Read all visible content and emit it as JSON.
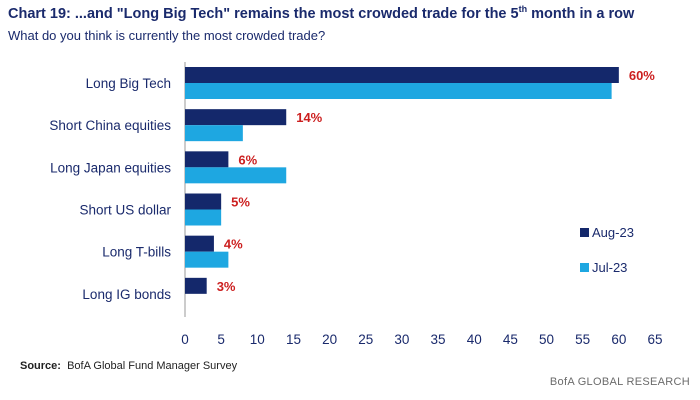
{
  "header": {
    "title": "Chart 19: ...and \"Long Big Tech\" remains the most crowded trade for the 5th month in a row",
    "title_prefix": "Chart 19: ...and \"Long Big Tech\" remains the most crowded trade for the 5",
    "title_sup": "th",
    "title_suffix": " month in a row",
    "subtitle": "What do you think is currently the most crowded trade?"
  },
  "chart_data": {
    "type": "bar",
    "orientation": "horizontal",
    "categories": [
      "Long Big Tech",
      "Short China equities",
      "Long Japan equities",
      "Short US dollar",
      "Long T-bills",
      "Long IG bonds"
    ],
    "series": [
      {
        "name": "Aug-23",
        "color": "#14286b",
        "values": [
          60,
          14,
          6,
          5,
          4,
          3
        ]
      },
      {
        "name": "Jul-23",
        "color": "#1ea7e1",
        "values": [
          59,
          8,
          14,
          5,
          6,
          0
        ]
      }
    ],
    "data_labels": [
      "60%",
      "14%",
      "6%",
      "5%",
      "4%",
      "3%"
    ],
    "data_label_color": "#cc1f1f",
    "xlim": [
      0,
      65
    ],
    "xticks": [
      0,
      5,
      10,
      15,
      20,
      25,
      30,
      35,
      40,
      45,
      50,
      55,
      60,
      65
    ],
    "legend_position": "right",
    "grid": false
  },
  "source": {
    "label": "Source:",
    "text": "BofA Global Fund Manager Survey"
  },
  "footer": {
    "text": "BofA GLOBAL RESEARCH"
  }
}
